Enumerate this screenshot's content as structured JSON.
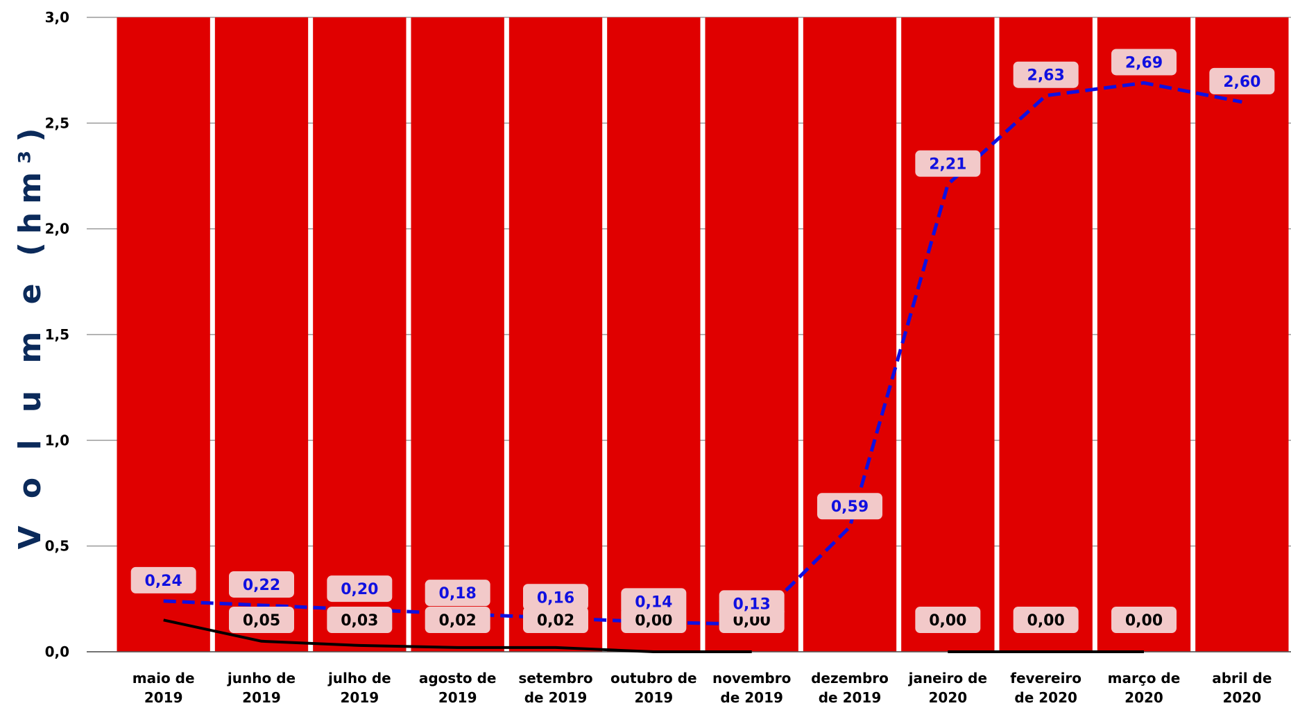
{
  "chart_data": {
    "type": "bar",
    "ylabel": "V o l u m e (hm³)",
    "ylim": [
      0,
      3.0
    ],
    "yticks": [
      "0,0",
      "0,5",
      "1,0",
      "1,5",
      "2,0",
      "2,5",
      "3,0"
    ],
    "ytick_values": [
      0,
      0.5,
      1.0,
      1.5,
      2.0,
      2.5,
      3.0
    ],
    "grid": true,
    "categories": [
      [
        "maio de",
        "2019"
      ],
      [
        "junho de",
        "2019"
      ],
      [
        "julho de",
        "2019"
      ],
      [
        "agosto de",
        "2019"
      ],
      [
        "setembro",
        "de 2019"
      ],
      [
        "outubro de",
        "2019"
      ],
      [
        "novembro",
        "de 2019"
      ],
      [
        "dezembro",
        "de 2019"
      ],
      [
        "janeiro de",
        "2020"
      ],
      [
        "fevereiro",
        "de 2020"
      ],
      [
        "março de",
        "2020"
      ],
      [
        "abril de",
        "2020"
      ]
    ],
    "series": [
      {
        "type": "bar",
        "values": [
          3.0,
          3.0,
          3.0,
          3.0,
          3.0,
          3.0,
          3.0,
          3.0,
          3.0,
          3.0,
          3.0,
          3.0
        ],
        "color": "#e00000"
      },
      {
        "type": "line",
        "style": "dashed",
        "color": "#1010e0",
        "values": [
          0.24,
          0.22,
          0.2,
          0.18,
          0.16,
          0.14,
          0.13,
          0.59,
          2.21,
          2.63,
          2.69,
          2.6
        ],
        "labels": [
          "0,24",
          "0,22",
          "0,20",
          "0,18",
          "0,16",
          "0,14",
          "0,13",
          "0,59",
          "2,21",
          "2,63",
          "2,69",
          "2,60"
        ]
      },
      {
        "type": "line",
        "style": "solid",
        "color": "#000000",
        "values": [
          0.15,
          0.05,
          0.03,
          0.02,
          0.02,
          0.0,
          0.0,
          null,
          0.0,
          0.0,
          0.0,
          null
        ],
        "labels": [
          "",
          "0,05",
          "0,03",
          "0,02",
          "0,02",
          "0,00",
          "0,00",
          "",
          "0,00",
          "0,00",
          "0,00",
          ""
        ]
      }
    ]
  }
}
